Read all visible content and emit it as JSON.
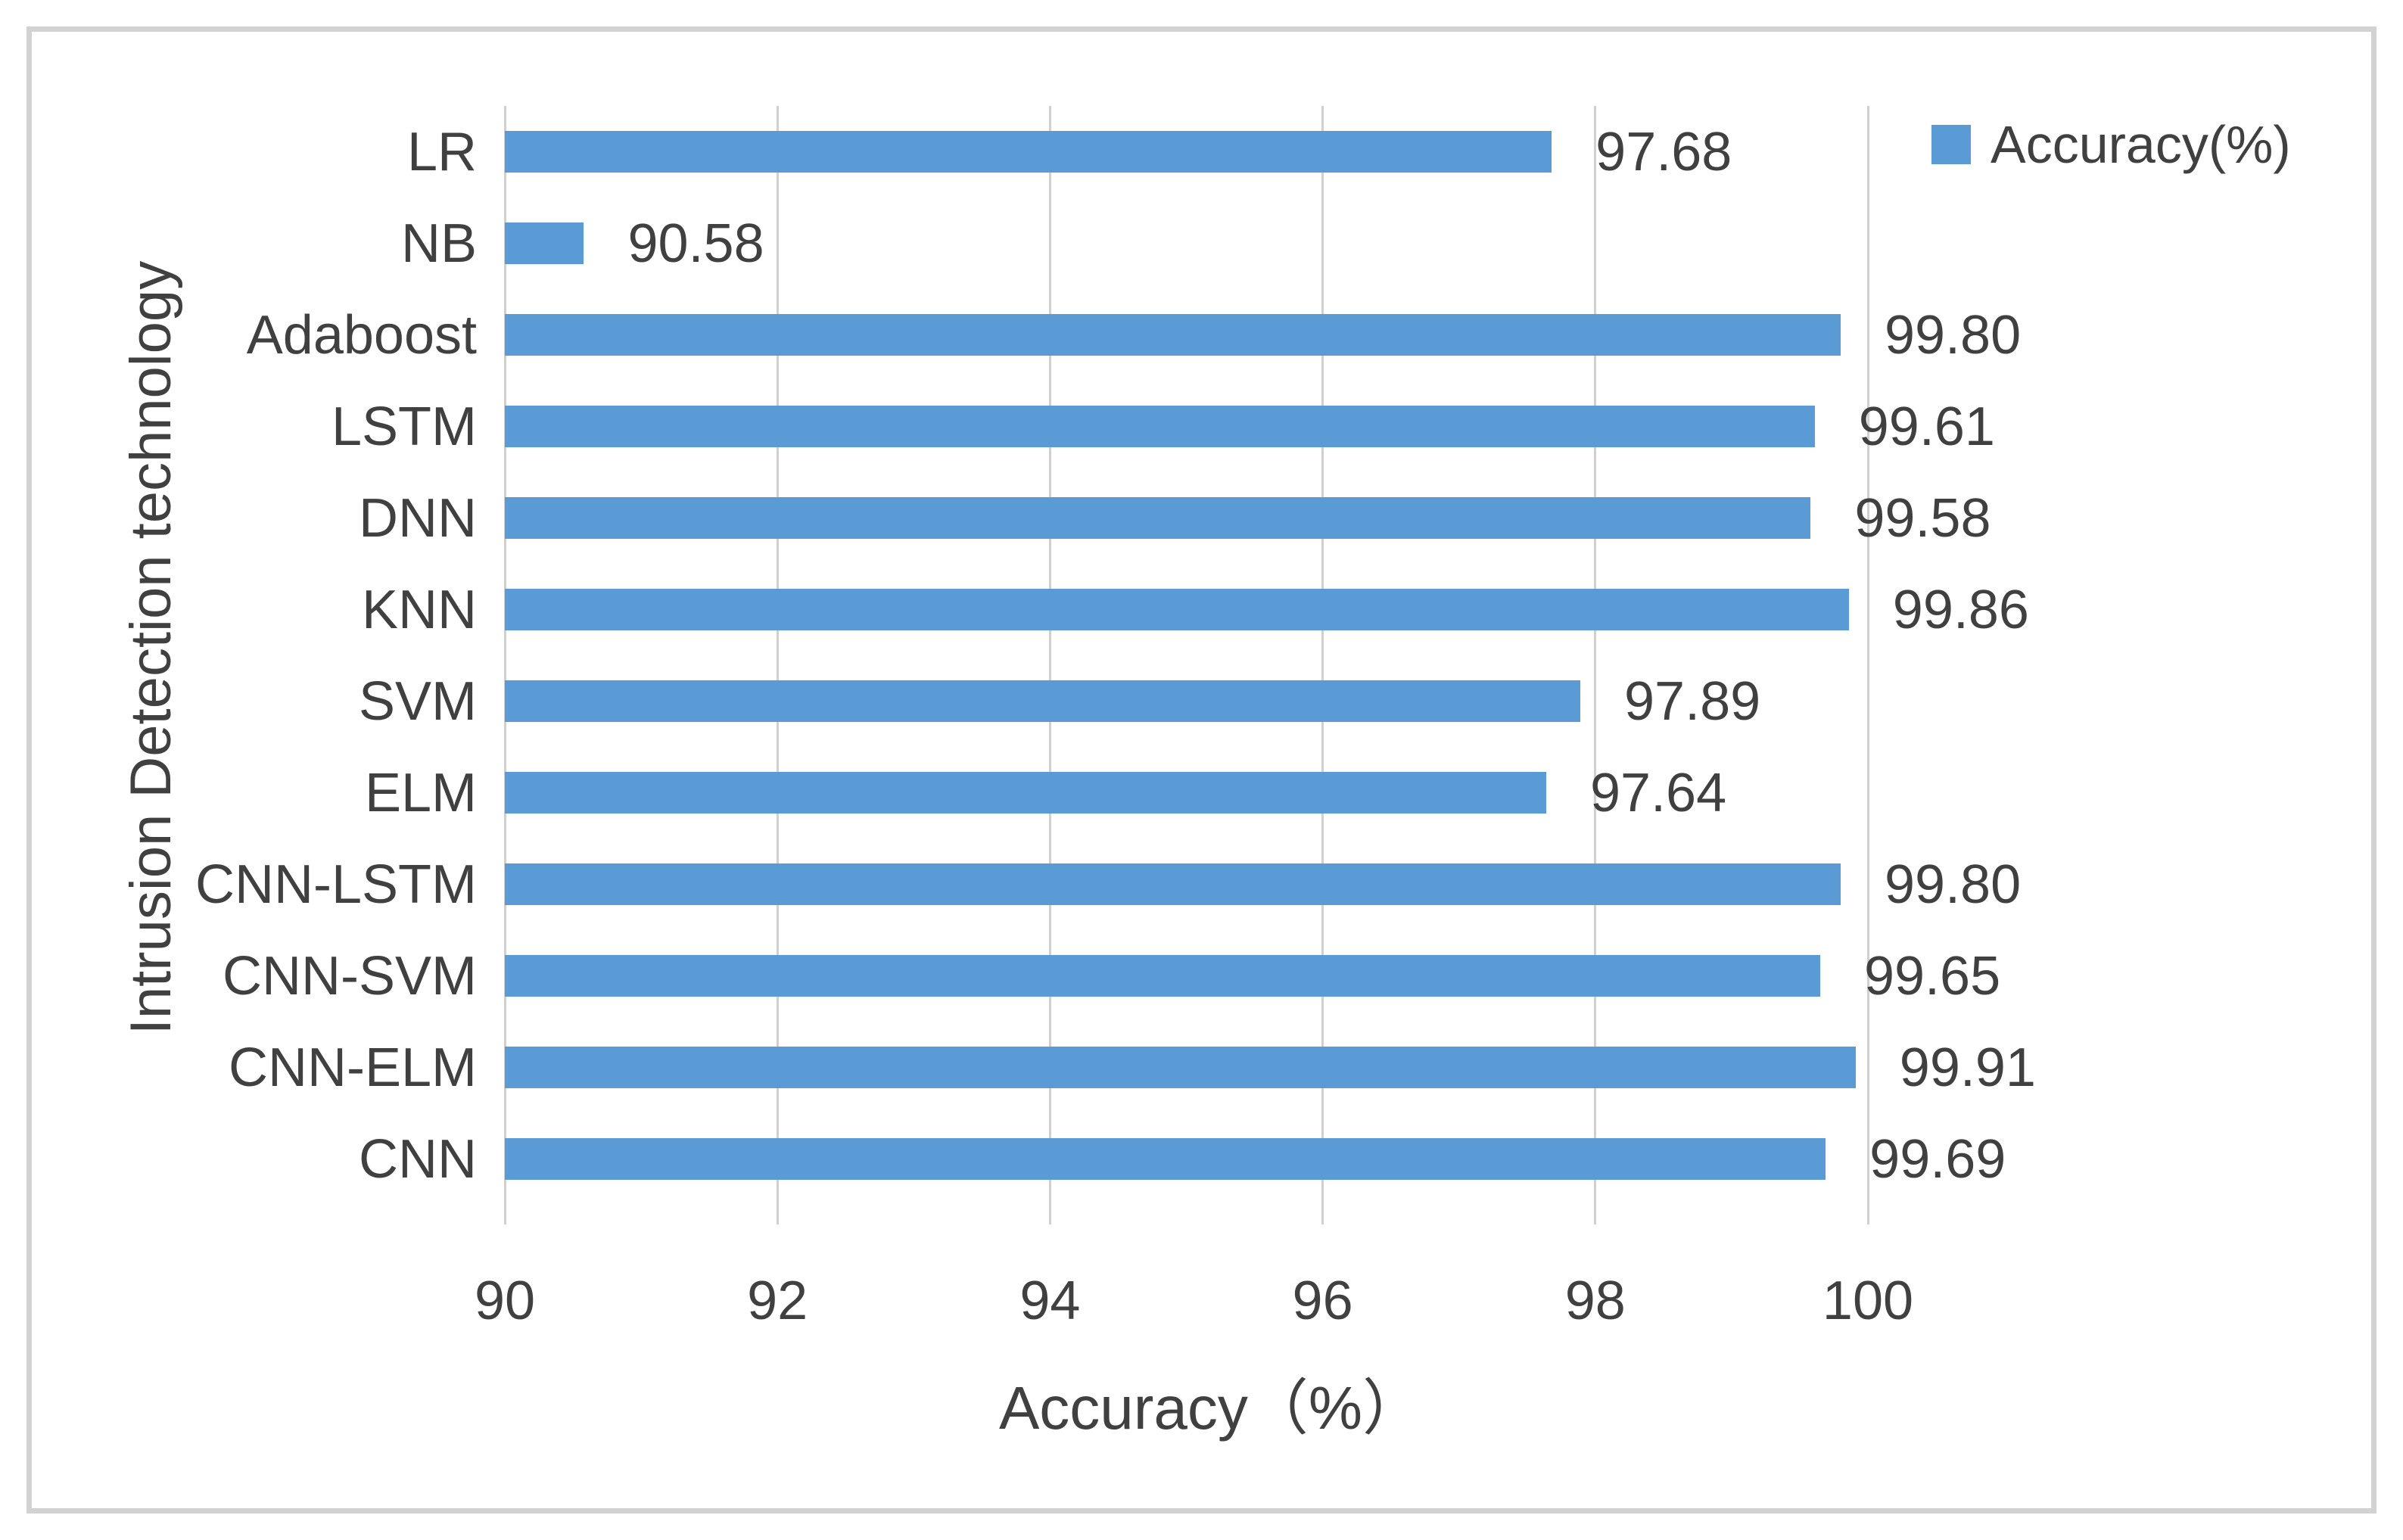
{
  "figure": {
    "legend": {
      "label": "Accuracy(%)"
    },
    "x_axis": {
      "title": "Accuracy（%）",
      "tick_labels": [
        "90",
        "92",
        "94",
        "96",
        "98",
        "100"
      ]
    },
    "y_axis": {
      "title": "Intrusion Detection technology"
    }
  },
  "colors": {
    "bar": "#5B9BD5",
    "gridline": "#D0D0D0",
    "text": "#404040",
    "figure_border": "#D2D2D2"
  },
  "chart_data": {
    "type": "bar",
    "orientation": "horizontal",
    "title": "",
    "xlabel": "Accuracy（%）",
    "ylabel": "Intrusion Detection technology",
    "categories": [
      "LR",
      "NB",
      "Adaboost",
      "LSTM",
      "DNN",
      "KNN",
      "SVM",
      "ELM",
      "CNN-LSTM",
      "CNN-SVM",
      "CNN-ELM",
      "CNN"
    ],
    "series": [
      {
        "name": "Accuracy(%)",
        "values": [
          97.68,
          90.58,
          99.8,
          99.61,
          99.58,
          99.86,
          97.89,
          97.64,
          99.8,
          99.65,
          99.91,
          99.69
        ]
      }
    ],
    "value_labels": [
      "97.68",
      "90.58",
      "99.80",
      "99.61",
      "99.58",
      "99.86",
      "97.89",
      "97.64",
      "99.80",
      "99.65",
      "99.91",
      "99.69"
    ],
    "xlim": [
      90,
      100
    ],
    "xticks": [
      90,
      92,
      94,
      96,
      98,
      100
    ],
    "grid": "vertical-gridlines-only",
    "legend_position": "top-right",
    "data_labels": "outside-end"
  }
}
